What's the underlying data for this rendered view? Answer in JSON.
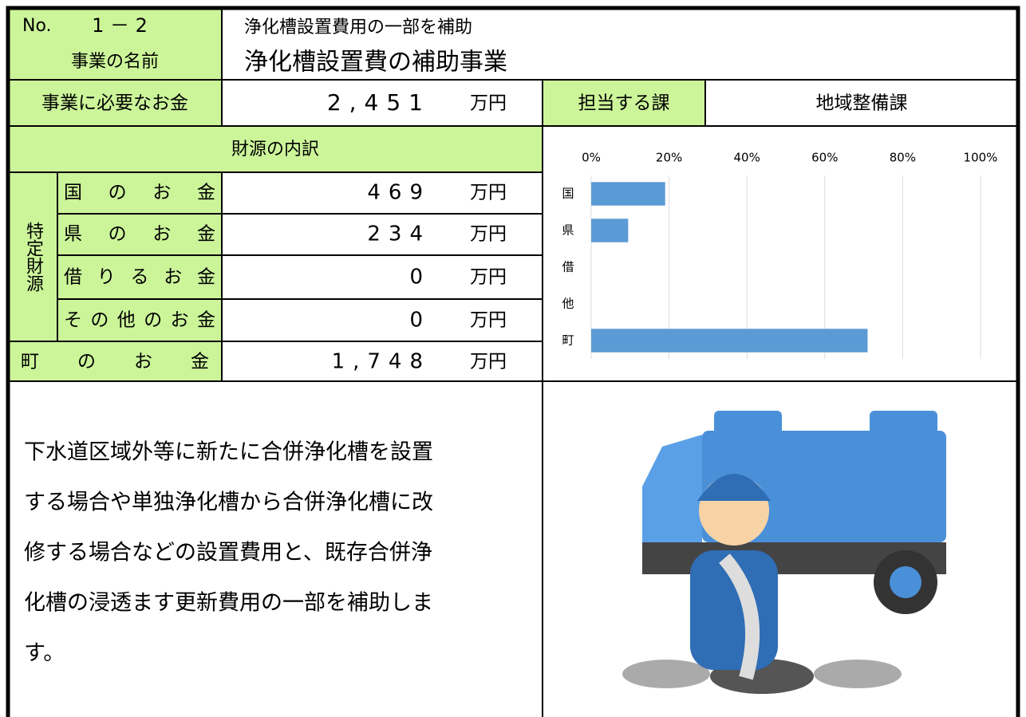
{
  "header": {
    "no_label": "No.",
    "no": "1 － 2",
    "subtitle": "浄化槽設置費用の一部を補助",
    "name_label": "事業の名前",
    "name": "浄化槽設置費の補助事業"
  },
  "cost": {
    "label": "事業に必要なお金",
    "value": "2,451",
    "unit": "万円"
  },
  "department": {
    "label": "担当する課",
    "value": "地域整備課"
  },
  "breakdown": {
    "title": "財源の内訳",
    "group_label": "特定財源",
    "rows": [
      {
        "label": "国のお金",
        "value": "469",
        "unit": "万円"
      },
      {
        "label": "県のお金",
        "value": "234",
        "unit": "万円"
      },
      {
        "label": "借りるお金",
        "value": "0",
        "unit": "万円"
      },
      {
        "label": "その他のお金",
        "value": "0",
        "unit": "万円"
      }
    ],
    "town": {
      "label": "町のお金",
      "value": "1,748",
      "unit": "万円"
    }
  },
  "chart_data": {
    "type": "bar",
    "orientation": "horizontal",
    "categories": [
      "国",
      "県",
      "借",
      "他",
      "町"
    ],
    "values": [
      19,
      9.5,
      0,
      0,
      71
    ],
    "color": "#5b9bd5",
    "xlim": [
      0,
      100
    ],
    "xticks": [
      {
        "value": 0,
        "label": "0%"
      },
      {
        "value": 20,
        "label": "20%"
      },
      {
        "value": 40,
        "label": "40%"
      },
      {
        "value": 60,
        "label": "60%"
      },
      {
        "value": 80,
        "label": "80%"
      },
      {
        "value": 100,
        "label": "100%"
      }
    ],
    "grid": true
  },
  "description": [
    "下水道区域外等に新たに合併浄化槽を設置",
    "する場合や単独浄化槽から合併浄化槽に改",
    "修する場合などの設置費用と、既存合併浄",
    "化槽の浸透ます更新費用の一部を補助しま",
    "す。"
  ]
}
